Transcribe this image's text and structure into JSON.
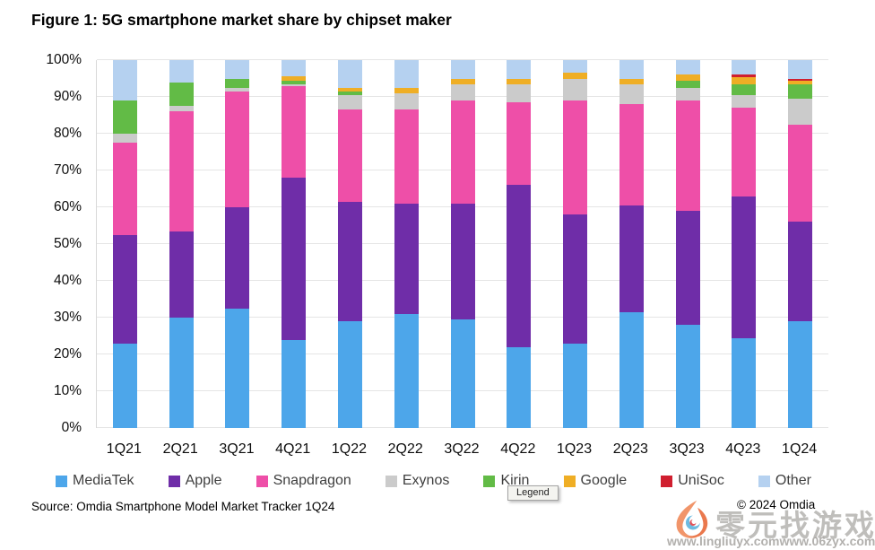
{
  "title": "Figure 1: 5G smartphone market share by chipset maker",
  "source": "Source: Omdia Smartphone Model Market Tracker 1Q24",
  "copyright": "© 2024 Omdia",
  "tooltip_label": "Legend",
  "watermark": {
    "brand_text": "零元找游戏",
    "url_left": "www.lingliuyx.com",
    "url_right": "www.06zyx.com",
    "logo": "flame-swirl-icon"
  },
  "chart_data": {
    "type": "bar",
    "stacked": true,
    "units": "%",
    "title": "Figure 1: 5G smartphone market share by chipset maker",
    "xlabel": "",
    "ylabel": "",
    "ylim": [
      0,
      100
    ],
    "grid": true,
    "legend_position": "bottom",
    "y_ticks": [
      "0%",
      "10%",
      "20%",
      "30%",
      "40%",
      "50%",
      "60%",
      "70%",
      "80%",
      "90%",
      "100%"
    ],
    "categories": [
      "1Q21",
      "2Q21",
      "3Q21",
      "4Q21",
      "1Q22",
      "2Q22",
      "3Q22",
      "4Q22",
      "1Q23",
      "2Q23",
      "3Q23",
      "4Q23",
      "1Q24"
    ],
    "series": [
      {
        "name": "MediaTek",
        "color": "#4da6ea",
        "values": [
          23,
          30,
          32.5,
          24,
          29,
          31,
          29.5,
          22,
          23,
          31.5,
          28,
          24.5,
          29
        ]
      },
      {
        "name": "Apple",
        "color": "#6f2da8",
        "values": [
          29.5,
          23.5,
          27.5,
          44,
          32.5,
          30,
          31.5,
          44,
          35,
          29,
          31,
          38.5,
          27
        ]
      },
      {
        "name": "Snapdragon",
        "color": "#ee4fa8",
        "values": [
          25,
          32.5,
          31.5,
          25,
          25,
          25.5,
          28,
          22.5,
          31,
          27.5,
          30,
          24,
          26.5
        ]
      },
      {
        "name": "Exynos",
        "color": "#cbcbcb",
        "values": [
          2.5,
          1.5,
          1,
          0.5,
          4,
          4.5,
          4.5,
          5,
          6,
          5.5,
          3.5,
          3.5,
          7
        ]
      },
      {
        "name": "Kirin",
        "color": "#62bb46",
        "values": [
          9,
          6.5,
          2.5,
          1,
          1,
          0,
          0,
          0,
          0,
          0,
          2,
          3,
          4
        ]
      },
      {
        "name": "Google",
        "color": "#efae25",
        "values": [
          0,
          0,
          0,
          1,
          1,
          1.5,
          1.5,
          1.5,
          1.5,
          1.5,
          1.5,
          1.8,
          1
        ]
      },
      {
        "name": "UniSoc",
        "color": "#d01f2f",
        "values": [
          0,
          0,
          0,
          0,
          0,
          0,
          0,
          0,
          0,
          0,
          0,
          0.7,
          0.5
        ]
      },
      {
        "name": "Other",
        "color": "#b5d1f0",
        "values": [
          11,
          6,
          5,
          4.5,
          7.5,
          7.5,
          5,
          5,
          3.5,
          5,
          4,
          4,
          5
        ]
      }
    ]
  }
}
